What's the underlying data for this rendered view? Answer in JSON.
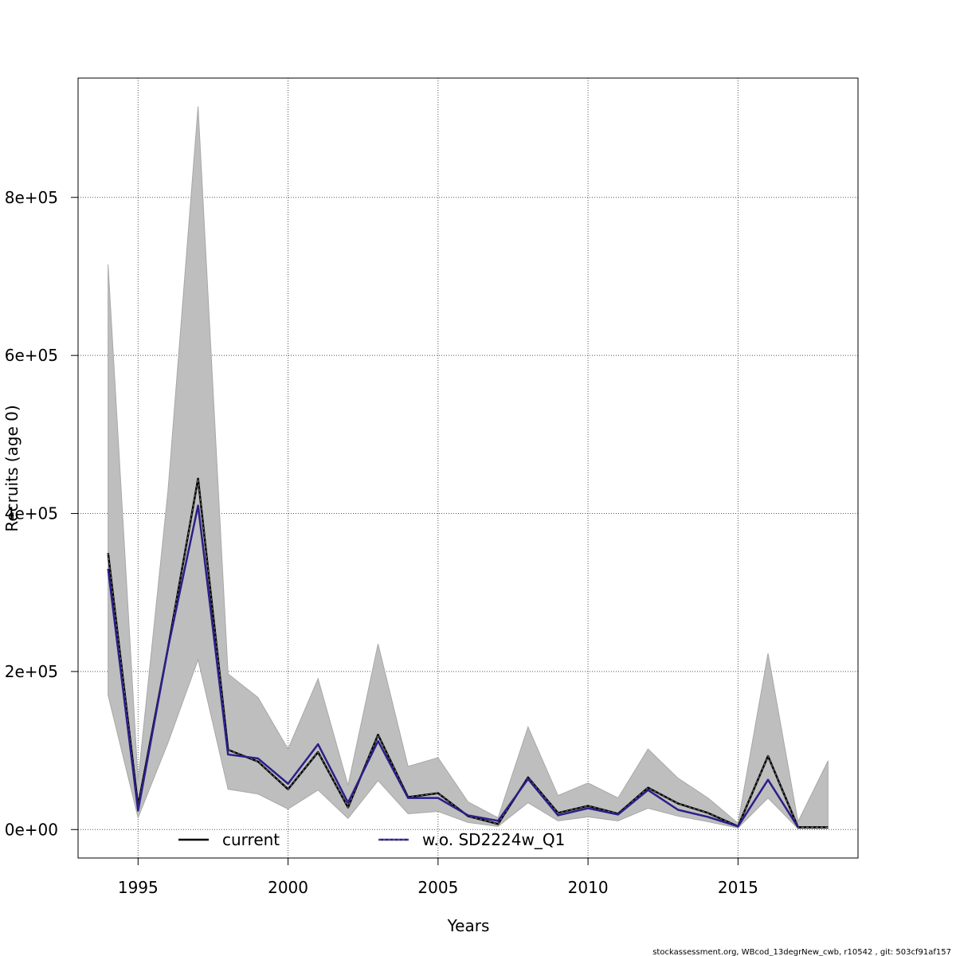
{
  "chart_data": {
    "type": "line",
    "xlabel": "Years",
    "ylabel": "Recruits (age 0)",
    "xlim": [
      1993,
      2019
    ],
    "ylim": [
      -36000,
      951000
    ],
    "x_ticks": [
      1995,
      2000,
      2005,
      2010,
      2015
    ],
    "x_tick_labels": [
      "1995",
      "2000",
      "2005",
      "2010",
      "2015"
    ],
    "y_ticks": [
      0,
      200000,
      400000,
      600000,
      800000
    ],
    "y_tick_labels": [
      "0e+00",
      "2e+05",
      "4e+05",
      "6e+05",
      "8e+05"
    ],
    "grid": true,
    "legend_position": "bottom",
    "x": [
      1994,
      1995,
      1996,
      1997,
      1998,
      1999,
      2000,
      2001,
      2002,
      2003,
      2004,
      2005,
      2006,
      2007,
      2008,
      2009,
      2010,
      2011,
      2012,
      2013,
      2014,
      2015,
      2016,
      2017,
      2018
    ],
    "confidence_band": {
      "lower": [
        170000,
        15000,
        110000,
        215000,
        51000,
        45000,
        26000,
        50000,
        14000,
        62000,
        20000,
        23000,
        9000,
        4000,
        34000,
        11000,
        16000,
        11000,
        27000,
        17000,
        10000,
        2000,
        40000,
        1000,
        1000
      ],
      "upper": [
        715000,
        62000,
        430000,
        915000,
        197000,
        167000,
        102000,
        191000,
        56000,
        235000,
        80000,
        91000,
        35000,
        15000,
        130000,
        43000,
        59000,
        40000,
        102000,
        65000,
        40000,
        8000,
        223000,
        10000,
        87000
      ]
    },
    "series": [
      {
        "name": "current",
        "color": "#000000",
        "values": [
          350000,
          30000,
          230000,
          444000,
          101000,
          86000,
          51000,
          98000,
          28000,
          120000,
          41000,
          46000,
          17000,
          7000,
          66000,
          21000,
          30000,
          20000,
          53000,
          33000,
          21000,
          4000,
          93000,
          3000,
          3000
        ]
      },
      {
        "name": "w.o. SD2224w_Q1",
        "color": "#2a1f8a",
        "values": [
          330000,
          24000,
          230000,
          410000,
          95000,
          90000,
          58000,
          108000,
          34000,
          112000,
          40000,
          40000,
          18000,
          11000,
          64000,
          18000,
          27000,
          19000,
          50000,
          25000,
          16000,
          4000,
          63000,
          3000,
          null
        ]
      }
    ]
  },
  "footer": {
    "text": "stockassessment.org, WBcod_13degrNew_cwb, r10542 , git: 503cf91af157"
  }
}
